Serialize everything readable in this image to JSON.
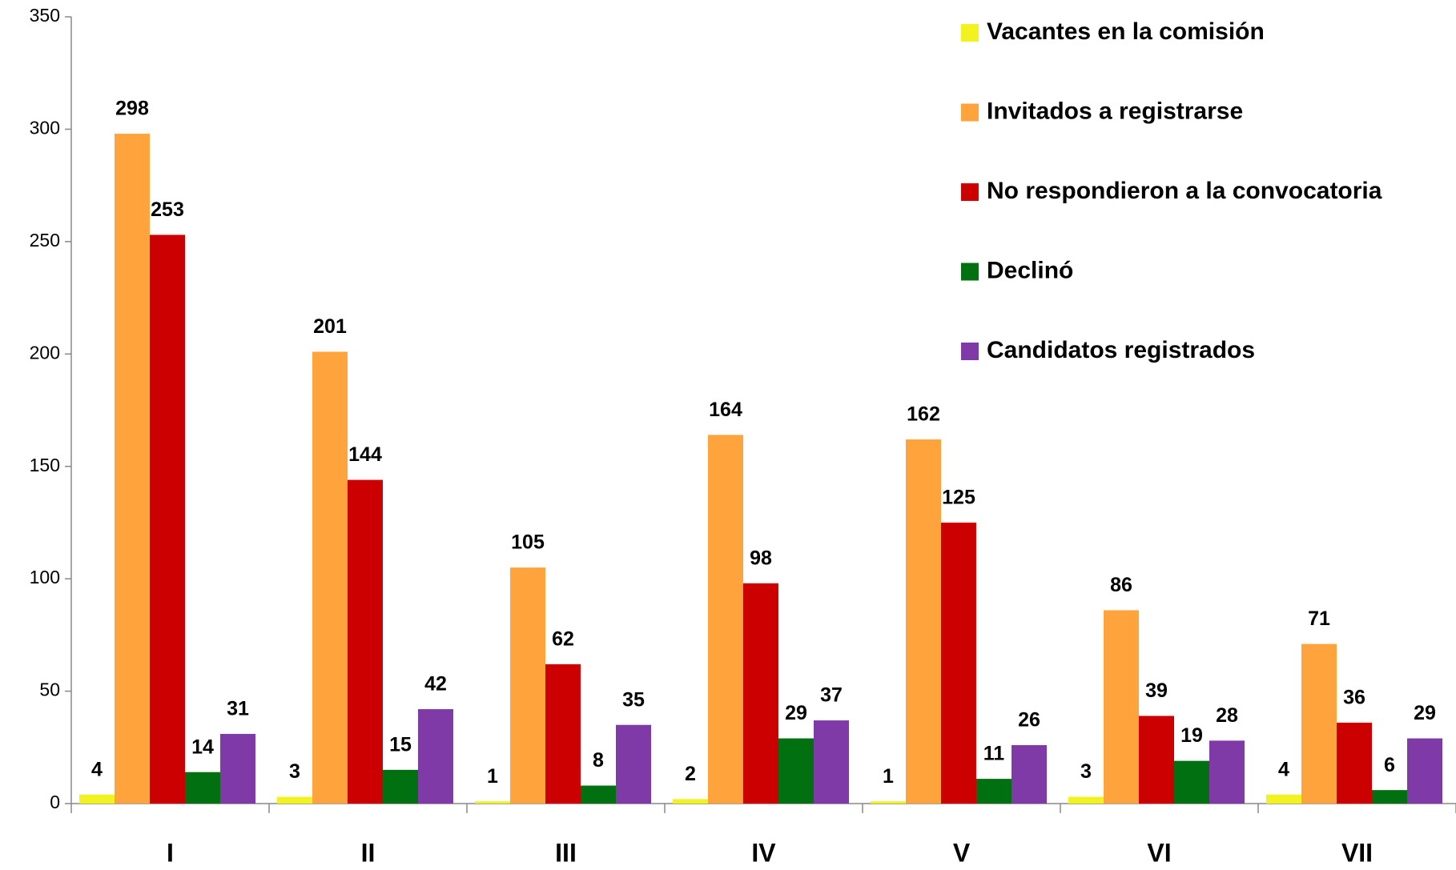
{
  "chart_data": {
    "type": "bar",
    "categories": [
      "I",
      "II",
      "III",
      "IV",
      "V",
      "VI",
      "VII"
    ],
    "series": [
      {
        "name": "Vacantes en la comisión",
        "color": "#f2f21f",
        "values": [
          4,
          3,
          1,
          2,
          1,
          3,
          4
        ]
      },
      {
        "name": "Invitados a registrarse",
        "color": "#ffa43c",
        "values": [
          298,
          201,
          105,
          164,
          162,
          86,
          71
        ]
      },
      {
        "name": "No respondieron a la convocatoria",
        "color": "#cc0000",
        "values": [
          253,
          144,
          62,
          98,
          125,
          39,
          36
        ]
      },
      {
        "name": "Declinó",
        "color": "#007010",
        "values": [
          14,
          15,
          8,
          29,
          11,
          19,
          6
        ]
      },
      {
        "name": "Candidatos registrados",
        "color": "#7f3aa8",
        "values": [
          31,
          42,
          35,
          37,
          26,
          28,
          29
        ]
      }
    ],
    "ylim": [
      0,
      350
    ],
    "yticks": [
      0,
      50,
      100,
      150,
      200,
      250,
      300,
      350
    ],
    "legend": "top-right"
  }
}
